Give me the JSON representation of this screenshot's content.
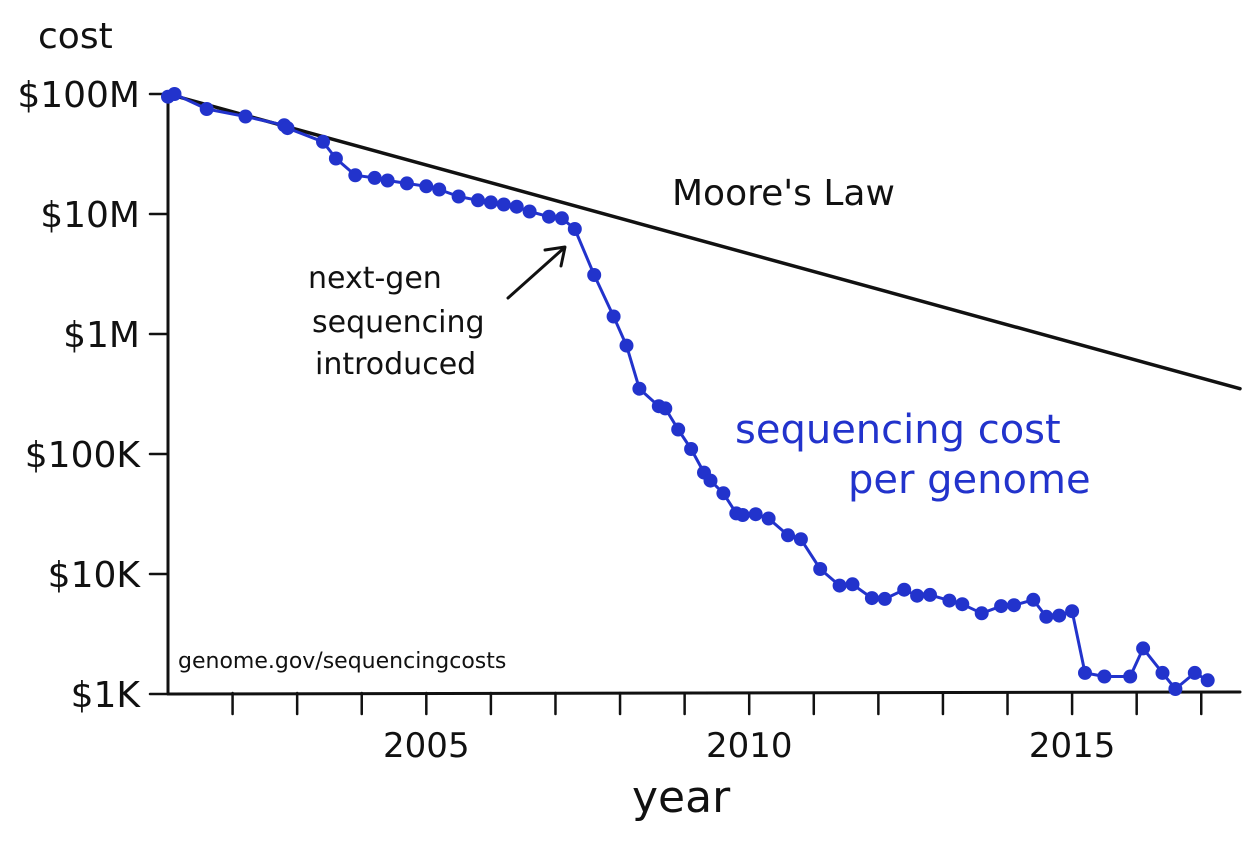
{
  "chart_data": {
    "type": "line",
    "title": "",
    "xlabel": "year",
    "ylabel": "cost",
    "y_scale": "log",
    "xlim": [
      2001,
      2017.6
    ],
    "ylim": [
      1000,
      100000000
    ],
    "x_ticks": [
      2002,
      2003,
      2004,
      2005,
      2006,
      2007,
      2008,
      2009,
      2010,
      2011,
      2012,
      2013,
      2014,
      2015,
      2016,
      2017
    ],
    "x_tick_labels": [
      {
        "x": 2005,
        "label": "2005"
      },
      {
        "x": 2010,
        "label": "2010"
      },
      {
        "x": 2015,
        "label": "2015"
      }
    ],
    "y_ticks": [
      {
        "value": 100000000,
        "label": "$100M"
      },
      {
        "value": 10000000,
        "label": "$10M"
      },
      {
        "value": 1000000,
        "label": "$1M"
      },
      {
        "value": 100000,
        "label": "$100K"
      },
      {
        "value": 10000,
        "label": "$10K"
      },
      {
        "value": 1000,
        "label": "$1K"
      }
    ],
    "grid": false,
    "legend": "none",
    "series": [
      {
        "name": "Moore's Law",
        "color": "#111111",
        "markers": false,
        "x": [
          2001.0,
          2017.6
        ],
        "y": [
          100000000,
          350000
        ]
      },
      {
        "name": "sequencing cost per genome",
        "color": "#2233cc",
        "markers": true,
        "x": [
          2001.0,
          2001.1,
          2001.6,
          2002.2,
          2002.8,
          2002.85,
          2003.4,
          2003.6,
          2003.9,
          2004.2,
          2004.4,
          2004.7,
          2005.0,
          2005.2,
          2005.5,
          2005.8,
          2006.0,
          2006.2,
          2006.4,
          2006.6,
          2006.9,
          2007.1,
          2007.3,
          2007.6,
          2007.9,
          2008.1,
          2008.3,
          2008.6,
          2008.7,
          2008.9,
          2009.1,
          2009.3,
          2009.4,
          2009.6,
          2009.8,
          2009.9,
          2010.1,
          2010.3,
          2010.6,
          2010.8,
          2011.1,
          2011.4,
          2011.6,
          2011.9,
          2012.1,
          2012.4,
          2012.6,
          2012.8,
          2013.1,
          2013.3,
          2013.6,
          2013.9,
          2014.1,
          2014.4,
          2014.6,
          2014.8,
          2015.0,
          2015.2,
          2015.5,
          2015.9,
          2016.1,
          2016.4,
          2016.6,
          2016.9,
          2017.1
        ],
        "y": [
          95000000,
          100000000,
          75000000,
          65000000,
          55000000,
          52000000,
          40000000,
          29000000,
          21000000,
          20000000,
          19000000,
          18000000,
          17000000,
          16000000,
          14000000,
          13000000,
          12500000,
          12000000,
          11500000,
          10500000,
          9500000,
          9200000,
          7500000,
          3100000,
          1400000,
          800000,
          350000,
          250000,
          240000,
          160000,
          110000,
          70000,
          60000,
          47000,
          32000,
          31000,
          31500,
          29000,
          21000,
          19500,
          11000,
          8000,
          8200,
          6300,
          6200,
          7400,
          6600,
          6700,
          6000,
          5600,
          4700,
          5400,
          5500,
          6100,
          4400,
          4500,
          4900,
          1500,
          1400,
          1400,
          2400,
          1500,
          1100,
          1500,
          1300
        ]
      }
    ],
    "annotations": [
      {
        "text_lines": [
          "next-gen",
          "sequencing",
          "introduced"
        ],
        "points_to_x": 2007.3,
        "points_to_y": 7500000
      },
      {
        "text_lines": [
          "Moore's Law"
        ]
      },
      {
        "text_lines": [
          "sequencing cost",
          "per genome"
        ]
      }
    ]
  },
  "source_note": "genome.gov/sequencingcosts",
  "colors": {
    "ink": "#111111",
    "sequencing": "#2233cc",
    "background": "#ffffff"
  }
}
